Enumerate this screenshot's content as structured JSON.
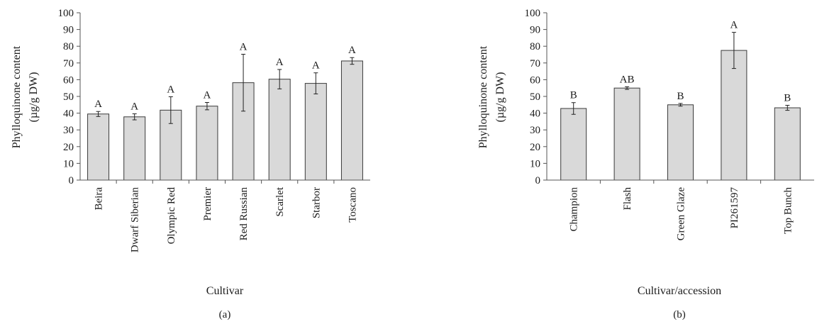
{
  "chart_data": [
    {
      "type": "bar",
      "panel_label": "(a)",
      "xlabel": "Cultivar",
      "ylabel_line1": "Phylloquinone content",
      "ylabel_line2": "(µg/g DW)",
      "ylim": [
        0,
        100
      ],
      "yticks": [
        0,
        10,
        20,
        30,
        40,
        50,
        60,
        70,
        80,
        90,
        100
      ],
      "categories": [
        "Beira",
        "Dwarf Siberian",
        "Olympic Red",
        "Premier",
        "Red Russian",
        "Scarlet",
        "Starbor",
        "Toscano"
      ],
      "values": [
        39.5,
        37.8,
        41.8,
        44.2,
        58.2,
        60.3,
        57.8,
        71.2
      ],
      "errors": [
        1.5,
        1.8,
        8.0,
        2.2,
        17.0,
        5.8,
        6.3,
        2.0
      ],
      "letters": [
        "A",
        "A",
        "A",
        "A",
        "A",
        "A",
        "A",
        "A"
      ],
      "grid": false,
      "bar_color": "#d9d9d9"
    },
    {
      "type": "bar",
      "panel_label": "(b)",
      "xlabel": "Cultivar/accession",
      "ylabel_line1": "Phylloquinone content",
      "ylabel_line2": "(µg/g DW)",
      "ylim": [
        0,
        100
      ],
      "yticks": [
        0,
        10,
        20,
        30,
        40,
        50,
        60,
        70,
        80,
        90,
        100
      ],
      "categories": [
        "Champion",
        "Flash",
        "Green Glaze",
        "PI261597",
        "Top Bunch"
      ],
      "values": [
        42.8,
        55.0,
        45.0,
        77.5,
        43.2
      ],
      "errors": [
        3.5,
        0.8,
        0.8,
        10.8,
        1.5
      ],
      "letters": [
        "B",
        "AB",
        "B",
        "A",
        "B"
      ],
      "grid": false,
      "bar_color": "#d9d9d9"
    }
  ]
}
